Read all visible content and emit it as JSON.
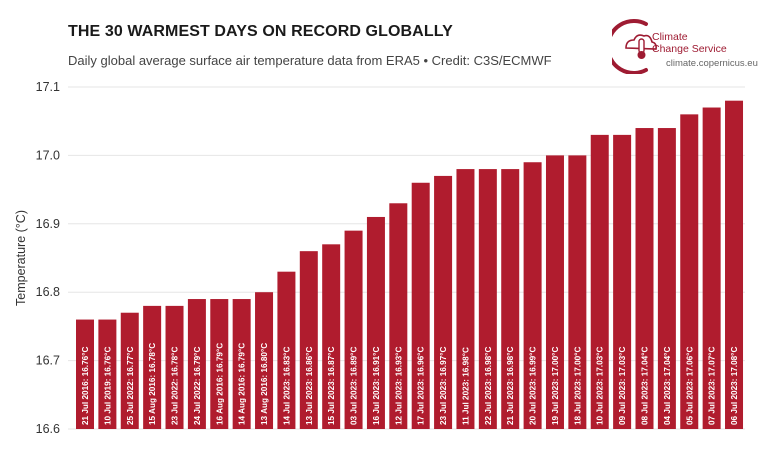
{
  "header": {
    "title": "THE 30 WARMEST DAYS ON RECORD GLOBALLY",
    "subtitle": "Daily global average surface air temperature data from ERA5 • Credit: C3S/ECMWF"
  },
  "logo": {
    "line1": "Climate",
    "line2": "Change Service",
    "url": "climate.copernicus.eu",
    "color": "#9e1b32"
  },
  "colors": {
    "bar": "#b01c2e",
    "grid": "#e6e6e6"
  },
  "chart_data": {
    "type": "bar",
    "title": "THE 30 WARMEST DAYS ON RECORD GLOBALLY",
    "ylabel": "Temperature (°C)",
    "xlabel": "",
    "ylim": [
      16.6,
      17.1
    ],
    "yticks": [
      16.6,
      16.7,
      16.8,
      16.9,
      17.0,
      17.1
    ],
    "ytick_labels": [
      "16.6",
      "16.7",
      "16.8",
      "16.9",
      "17.0",
      "17.1"
    ],
    "grid": true,
    "categories": [
      "21 Jul 2016",
      "10 Jul 2019",
      "25 Jul 2022",
      "15 Aug 2016",
      "23 Jul 2022",
      "24 Jul 2022",
      "16 Aug 2016",
      "14 Aug 2016",
      "13 Aug 2016",
      "14 Jul 2023",
      "13 Jul 2023",
      "15 Jul 2023",
      "03 Jul 2023",
      "16 Jul 2023",
      "12 Jul 2023",
      "17 Jul 2023",
      "23 Jul 2023",
      "11 Jul 2023",
      "22 Jul 2023",
      "21 Jul 2023",
      "20 Jul 2023",
      "19 Jul 2023",
      "18 Jul 2023",
      "10 Jul 2023",
      "09 Jul 2023",
      "08 Jul 2023",
      "04 Jul 2023",
      "05 Jul 2023",
      "07 Jul 2023",
      "06 Jul 2023"
    ],
    "values": [
      16.76,
      16.76,
      16.77,
      16.78,
      16.78,
      16.79,
      16.79,
      16.79,
      16.8,
      16.83,
      16.86,
      16.87,
      16.89,
      16.91,
      16.93,
      16.96,
      16.97,
      16.98,
      16.98,
      16.98,
      16.99,
      17.0,
      17.0,
      17.03,
      17.03,
      17.04,
      17.04,
      17.06,
      17.07,
      17.08
    ],
    "labels": [
      "21 Jul 2016: 16.76°C",
      "10 Jul 2019: 16.76°C",
      "25 Jul 2022: 16.77°C",
      "15 Aug 2016: 16.78°C",
      "23 Jul 2022: 16.78°C",
      "24 Jul 2022: 16.79°C",
      "16 Aug 2016: 16.79°C",
      "14 Aug 2016: 16.79°C",
      "13 Aug 2016: 16.80°C",
      "14 Jul 2023: 16.83°C",
      "13 Jul 2023: 16.86°C",
      "15 Jul 2023: 16.87°C",
      "03 Jul 2023: 16.89°C",
      "16 Jul 2023: 16.91°C",
      "12 Jul 2023: 16.93°C",
      "17 Jul 2023: 16.96°C",
      "23 Jul 2023: 16.97°C",
      "11 Jul 2023: 16.98°C",
      "22 Jul 2023: 16.98°C",
      "21 Jul 2023: 16.98°C",
      "20 Jul 2023: 16.99°C",
      "19 Jul 2023: 17.00°C",
      "18 Jul 2023: 17.00°C",
      "10 Jul 2023: 17.03°C",
      "09 Jul 2023: 17.03°C",
      "08 Jul 2023: 17.04°C",
      "04 Jul 2023: 17.04°C",
      "05 Jul 2023: 17.06°C",
      "07 Jul 2023: 17.07°C",
      "06 Jul 2023: 17.08°C"
    ]
  }
}
